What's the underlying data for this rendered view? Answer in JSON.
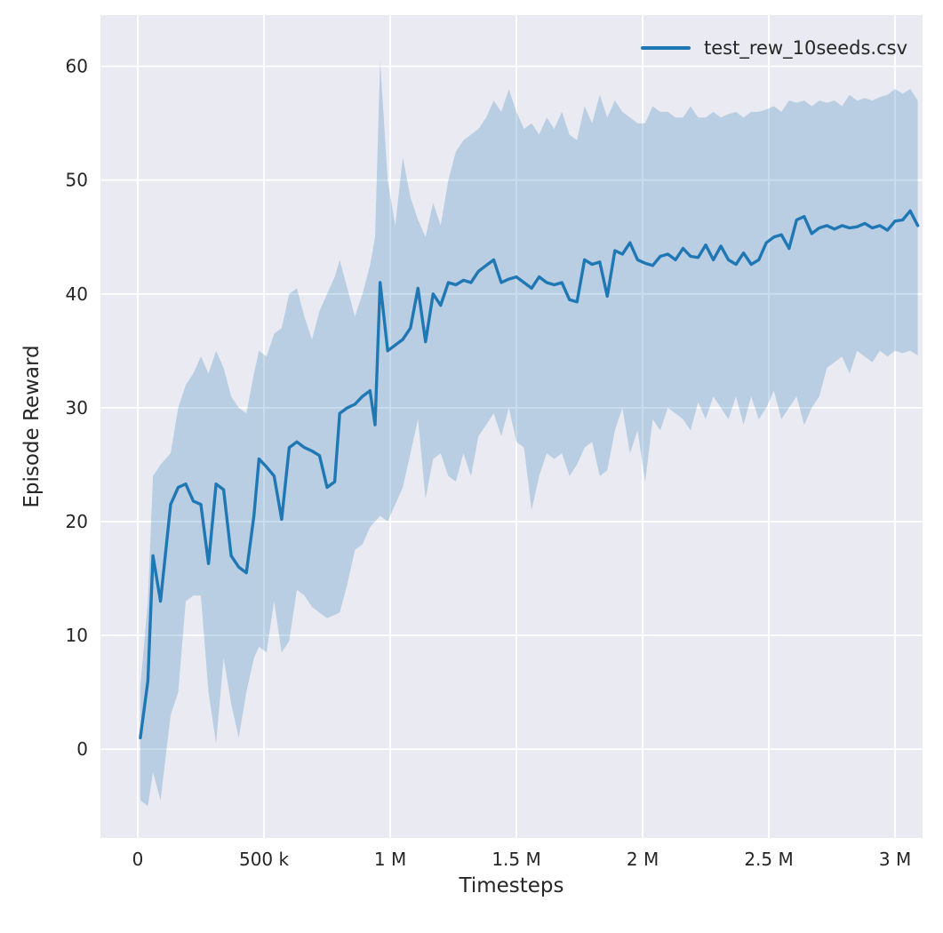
{
  "figure": {
    "background": "#ffffff",
    "axes_background": "#eaeaf2",
    "grid_color": "#ffffff",
    "text_color": "#262626"
  },
  "chart_data": {
    "type": "line",
    "title": "",
    "xlabel": "Timesteps",
    "ylabel": "Episode Reward",
    "series_name": "test_rew_10seeds.csv",
    "legend_position": "upper right",
    "grid": true,
    "line_color": "#1f77b4",
    "band_color": "#1f77b4",
    "band_opacity": 0.24,
    "x_unit": "millions of timesteps",
    "xlim": [
      -0.148,
      3.109
    ],
    "ylim": [
      -7.8,
      64.5
    ],
    "x_ticks": [
      {
        "v": 0.0,
        "label": "0"
      },
      {
        "v": 0.5,
        "label": "500 k"
      },
      {
        "v": 1.0,
        "label": "1 M"
      },
      {
        "v": 1.5,
        "label": "1.5 M"
      },
      {
        "v": 2.0,
        "label": "2 M"
      },
      {
        "v": 2.5,
        "label": "2.5 M"
      },
      {
        "v": 3.0,
        "label": "3 M"
      }
    ],
    "y_ticks": [
      {
        "v": 0,
        "label": "0"
      },
      {
        "v": 10,
        "label": "10"
      },
      {
        "v": 20,
        "label": "20"
      },
      {
        "v": 30,
        "label": "30"
      },
      {
        "v": 40,
        "label": "40"
      },
      {
        "v": 50,
        "label": "50"
      },
      {
        "v": 60,
        "label": "60"
      }
    ],
    "points_format": [
      "x_millions",
      "mean",
      "band_low",
      "band_high"
    ],
    "points": [
      [
        0.01,
        1.0,
        -4.5,
        5.5
      ],
      [
        0.04,
        6.0,
        -5.0,
        13.0
      ],
      [
        0.06,
        17.0,
        -2.0,
        24.0
      ],
      [
        0.09,
        13.0,
        -4.5,
        25.0
      ],
      [
        0.13,
        21.5,
        3.0,
        26.0
      ],
      [
        0.16,
        23.0,
        5.0,
        30.0
      ],
      [
        0.19,
        23.3,
        13.0,
        32.0
      ],
      [
        0.22,
        21.8,
        13.5,
        33.0
      ],
      [
        0.25,
        21.5,
        13.5,
        34.5
      ],
      [
        0.28,
        16.3,
        5.0,
        33.0
      ],
      [
        0.31,
        23.3,
        0.5,
        35.0
      ],
      [
        0.34,
        22.8,
        8.0,
        33.5
      ],
      [
        0.37,
        17.0,
        4.0,
        31.0
      ],
      [
        0.4,
        16.0,
        1.0,
        30.0
      ],
      [
        0.43,
        15.5,
        5.0,
        29.5
      ],
      [
        0.46,
        20.5,
        8.0,
        33.0
      ],
      [
        0.48,
        25.5,
        9.0,
        35.0
      ],
      [
        0.51,
        24.8,
        8.5,
        34.5
      ],
      [
        0.54,
        24.0,
        13.0,
        36.5
      ],
      [
        0.57,
        20.2,
        8.5,
        37.0
      ],
      [
        0.6,
        26.5,
        9.5,
        40.0
      ],
      [
        0.63,
        27.0,
        14.0,
        40.5
      ],
      [
        0.66,
        26.5,
        13.5,
        38.0
      ],
      [
        0.69,
        26.2,
        12.5,
        36.0
      ],
      [
        0.72,
        25.8,
        12.0,
        38.5
      ],
      [
        0.75,
        23.0,
        11.5,
        40.0
      ],
      [
        0.78,
        23.5,
        11.8,
        41.5
      ],
      [
        0.8,
        29.5,
        12.0,
        43.0
      ],
      [
        0.83,
        30.0,
        14.5,
        40.5
      ],
      [
        0.86,
        30.3,
        17.5,
        38.0
      ],
      [
        0.89,
        31.0,
        18.0,
        40.0
      ],
      [
        0.92,
        31.5,
        19.5,
        42.5
      ],
      [
        0.94,
        28.5,
        20.0,
        45.0
      ],
      [
        0.96,
        41.0,
        20.5,
        60.5
      ],
      [
        0.99,
        35.0,
        20.0,
        50.0
      ],
      [
        1.02,
        35.5,
        21.5,
        46.0
      ],
      [
        1.05,
        36.0,
        23.0,
        52.0
      ],
      [
        1.08,
        37.0,
        26.0,
        48.5
      ],
      [
        1.11,
        40.5,
        29.0,
        46.5
      ],
      [
        1.14,
        35.8,
        22.0,
        45.0
      ],
      [
        1.17,
        40.0,
        25.5,
        48.0
      ],
      [
        1.2,
        39.0,
        26.0,
        46.0
      ],
      [
        1.23,
        41.0,
        24.0,
        50.0
      ],
      [
        1.26,
        40.8,
        23.5,
        52.5
      ],
      [
        1.29,
        41.2,
        26.0,
        53.5
      ],
      [
        1.32,
        41.0,
        24.0,
        54.0
      ],
      [
        1.35,
        42.0,
        27.5,
        54.5
      ],
      [
        1.38,
        42.5,
        28.5,
        55.5
      ],
      [
        1.41,
        43.0,
        29.5,
        57.0
      ],
      [
        1.44,
        41.0,
        27.5,
        56.0
      ],
      [
        1.47,
        41.3,
        30.0,
        58.0
      ],
      [
        1.5,
        41.5,
        27.0,
        56.0
      ],
      [
        1.53,
        41.0,
        26.5,
        54.5
      ],
      [
        1.56,
        40.5,
        21.0,
        55.0
      ],
      [
        1.59,
        41.5,
        24.0,
        54.0
      ],
      [
        1.62,
        41.0,
        26.0,
        55.5
      ],
      [
        1.65,
        40.8,
        25.5,
        54.5
      ],
      [
        1.68,
        41.0,
        26.0,
        56.0
      ],
      [
        1.71,
        39.5,
        24.0,
        54.0
      ],
      [
        1.74,
        39.3,
        25.0,
        53.5
      ],
      [
        1.77,
        43.0,
        26.5,
        56.5
      ],
      [
        1.8,
        42.6,
        27.0,
        55.0
      ],
      [
        1.83,
        42.8,
        24.0,
        57.5
      ],
      [
        1.86,
        39.8,
        24.5,
        55.5
      ],
      [
        1.89,
        43.8,
        28.0,
        57.0
      ],
      [
        1.92,
        43.5,
        30.0,
        56.0
      ],
      [
        1.95,
        44.5,
        26.0,
        55.5
      ],
      [
        1.98,
        43.0,
        28.0,
        55.0
      ],
      [
        2.01,
        42.7,
        23.5,
        55.0
      ],
      [
        2.04,
        42.5,
        29.0,
        56.5
      ],
      [
        2.07,
        43.3,
        28.0,
        56.0
      ],
      [
        2.1,
        43.5,
        30.0,
        56.0
      ],
      [
        2.13,
        43.0,
        29.5,
        55.5
      ],
      [
        2.16,
        44.0,
        29.0,
        55.5
      ],
      [
        2.19,
        43.3,
        28.0,
        56.5
      ],
      [
        2.22,
        43.2,
        30.5,
        55.5
      ],
      [
        2.25,
        44.3,
        29.0,
        55.5
      ],
      [
        2.28,
        43.0,
        31.0,
        56.0
      ],
      [
        2.31,
        44.2,
        30.0,
        55.5
      ],
      [
        2.34,
        43.0,
        29.0,
        55.8
      ],
      [
        2.37,
        42.6,
        31.0,
        56.0
      ],
      [
        2.4,
        43.6,
        28.5,
        55.5
      ],
      [
        2.43,
        42.6,
        31.0,
        56.0
      ],
      [
        2.46,
        43.0,
        29.0,
        56.0
      ],
      [
        2.49,
        44.5,
        30.0,
        56.2
      ],
      [
        2.52,
        45.0,
        31.5,
        56.5
      ],
      [
        2.55,
        45.2,
        29.0,
        56.0
      ],
      [
        2.58,
        44.0,
        30.0,
        57.0
      ],
      [
        2.61,
        46.5,
        31.0,
        56.8
      ],
      [
        2.64,
        46.8,
        28.5,
        57.0
      ],
      [
        2.67,
        45.3,
        30.0,
        56.5
      ],
      [
        2.7,
        45.8,
        31.0,
        57.0
      ],
      [
        2.73,
        46.0,
        33.5,
        56.8
      ],
      [
        2.76,
        45.7,
        34.0,
        57.0
      ],
      [
        2.79,
        46.0,
        34.5,
        56.5
      ],
      [
        2.82,
        45.8,
        33.0,
        57.5
      ],
      [
        2.85,
        45.9,
        35.0,
        57.0
      ],
      [
        2.88,
        46.2,
        34.5,
        57.2
      ],
      [
        2.91,
        45.8,
        34.0,
        57.0
      ],
      [
        2.94,
        46.0,
        35.0,
        57.3
      ],
      [
        2.97,
        45.6,
        34.5,
        57.5
      ],
      [
        3.0,
        46.4,
        35.0,
        58.0
      ],
      [
        3.03,
        46.5,
        34.8,
        57.6
      ],
      [
        3.06,
        47.3,
        35.0,
        58.0
      ],
      [
        3.09,
        46.0,
        34.6,
        57.0
      ]
    ]
  }
}
